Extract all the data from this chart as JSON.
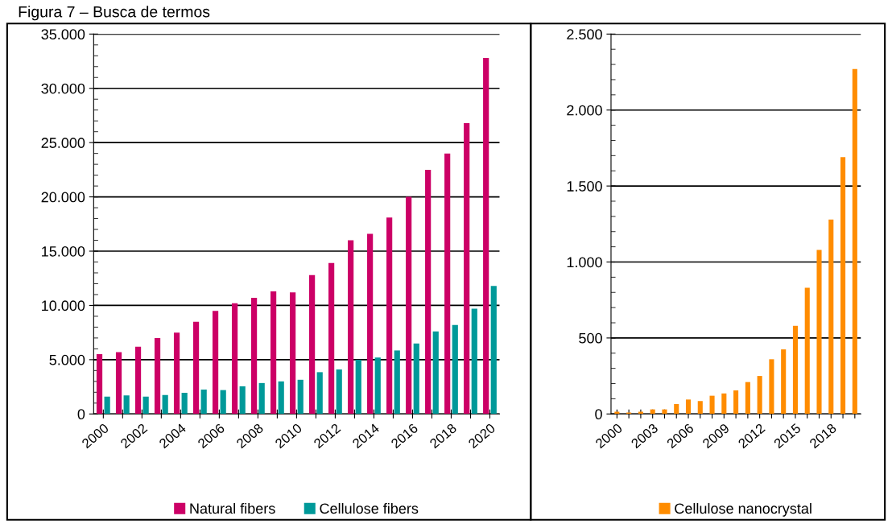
{
  "chart_data": [
    {
      "type": "bar",
      "title": "Figura 7 – Busca de termos",
      "categories": [
        "2000",
        null,
        "2002",
        null,
        "2004",
        null,
        "2006",
        null,
        "2008",
        null,
        "2010",
        null,
        "2012",
        null,
        "2014",
        null,
        "2016",
        null,
        "2018",
        null,
        "2020"
      ],
      "series": [
        {
          "name": "Natural fibers",
          "color": "#cc0066",
          "values": [
            5500,
            5700,
            6200,
            7000,
            7500,
            8500,
            9500,
            10200,
            10700,
            11300,
            11200,
            12800,
            13900,
            16000,
            16600,
            18100,
            20000,
            22500,
            24000,
            26800,
            32800
          ]
        },
        {
          "name": "Cellulose fibers",
          "color": "#009999",
          "values": [
            1600,
            1700,
            1600,
            1750,
            1950,
            2250,
            2200,
            2550,
            2850,
            3000,
            3150,
            3850,
            4100,
            5000,
            5200,
            5850,
            6500,
            7600,
            8200,
            9700,
            11800
          ]
        }
      ],
      "ylim": [
        0,
        35000
      ],
      "yticks": [
        0,
        {
          "value": 5000,
          "label": "5.000"
        },
        {
          "value": 10000,
          "label": "10.000"
        },
        {
          "value": 15000,
          "label": "15.000"
        },
        {
          "value": 20000,
          "label": "20.000"
        },
        {
          "value": 25000,
          "label": "25.000"
        },
        {
          "value": 30000,
          "label": "30.000"
        },
        {
          "value": 35000,
          "label": "35.000"
        }
      ],
      "grid": "y",
      "legend": "bottom"
    },
    {
      "type": "bar",
      "categories": [
        "2000",
        null,
        null,
        "2003",
        null,
        null,
        "2006",
        null,
        null,
        "2009",
        null,
        null,
        "2012",
        null,
        null,
        "2015",
        null,
        null,
        "2018",
        null,
        null
      ],
      "series": [
        {
          "name": "Cellulose nanocrystal",
          "color": "#ff8c00",
          "values": [
            15,
            10,
            15,
            30,
            30,
            65,
            95,
            85,
            120,
            135,
            155,
            210,
            250,
            360,
            425,
            580,
            830,
            1080,
            1280,
            1690,
            2270
          ]
        }
      ],
      "ylim": [
        0,
        2500
      ],
      "yticks": [
        0,
        500,
        {
          "value": 1000,
          "label": "1.000"
        },
        {
          "value": 1500,
          "label": "1.500"
        },
        {
          "value": 2000,
          "label": "2.000"
        },
        {
          "value": 2500,
          "label": "2.500"
        }
      ],
      "grid": "y",
      "legend": "bottom"
    }
  ]
}
